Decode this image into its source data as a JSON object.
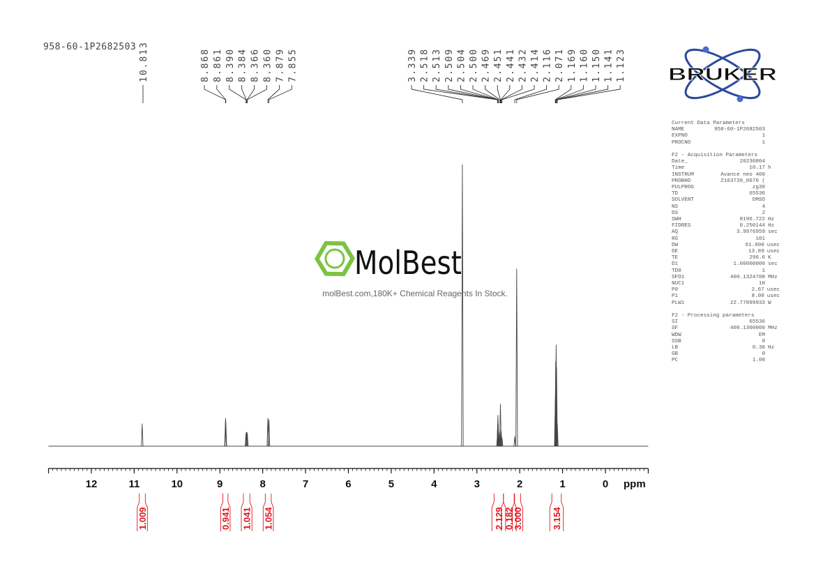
{
  "sample_name": "958-60-1P2682503",
  "logo": {
    "text": "BRUKER",
    "color": "#1f3f8f",
    "accent": "#4060c0"
  },
  "watermark": {
    "brand": "MolBest",
    "tagline": "molBest.com,180K+ Chemical Reagents In Stock.",
    "color": "#7dc242"
  },
  "parameters": [
    {
      "title": "Current Data Parameters",
      "rows": [
        [
          "NAME",
          "958-60-1P2682503",
          ""
        ],
        [
          "EXPNO",
          "1",
          ""
        ],
        [
          "PROCNO",
          "1",
          ""
        ]
      ]
    },
    {
      "title": "F2 - Acquisition Parameters",
      "rows": [
        [
          "Date_",
          "20230804",
          ""
        ],
        [
          "Time",
          "10.17",
          "h"
        ],
        [
          "INSTRUM",
          "Avance neo 400",
          ""
        ],
        [
          "PROBHD",
          "Z163739_0670 (",
          ""
        ],
        [
          "PULPROG",
          "zg30",
          ""
        ],
        [
          "TD",
          "65536",
          ""
        ],
        [
          "SOLVENT",
          "DMSO",
          ""
        ],
        [
          "NS",
          "4",
          ""
        ],
        [
          "DS",
          "2",
          ""
        ],
        [
          "SWH",
          "8196.722",
          "Hz"
        ],
        [
          "FIDRES",
          "0.250144",
          "Hz"
        ],
        [
          "AQ",
          "3.9976959",
          "sec"
        ],
        [
          "RG",
          "101",
          ""
        ],
        [
          "DW",
          "61.000",
          "usec"
        ],
        [
          "DE",
          "13.89",
          "usec"
        ],
        [
          "TE",
          "296.6",
          "K"
        ],
        [
          "D1",
          "1.00000000",
          "sec"
        ],
        [
          "TD0",
          "1",
          ""
        ],
        [
          "SFO1",
          "400.1324708",
          "MHz"
        ],
        [
          "NUC1",
          "1H",
          ""
        ],
        [
          "P0",
          "2.67",
          "usec"
        ],
        [
          "P1",
          "8.00",
          "usec"
        ],
        [
          "PLW1",
          "22.77899933",
          "W"
        ]
      ]
    },
    {
      "title": "F2 - Processing parameters",
      "rows": [
        [
          "SI",
          "65536",
          ""
        ],
        [
          "SF",
          "400.1300000",
          "MHz"
        ],
        [
          "WDW",
          "EM",
          ""
        ],
        [
          "SSB",
          "0",
          ""
        ],
        [
          "LB",
          "0.30",
          "Hz"
        ],
        [
          "GB",
          "0",
          ""
        ],
        [
          "PC",
          "1.00",
          ""
        ]
      ]
    }
  ],
  "chart_data": {
    "type": "line",
    "xlabel": "ppm",
    "xlim": [
      13.0,
      -1.0
    ],
    "x_reversed": true,
    "xticks": [
      "12",
      "11",
      "10",
      "9",
      "8",
      "7",
      "6",
      "5",
      "4",
      "3",
      "2",
      "1",
      "0"
    ],
    "colors": {
      "spectrum": "#444444",
      "integral": "#e0141e",
      "peak_labels": "#444444"
    },
    "peak_label_groups": [
      [
        "10.813"
      ],
      [
        "8.868",
        "8.861",
        "8.390",
        "8.384",
        "8.366",
        "8.360",
        "7.879",
        "7.855"
      ],
      [
        "3.339",
        "2.518",
        "2.513",
        "2.509",
        "2.504",
        "2.500",
        "2.469",
        "2.451",
        "2.441",
        "2.432",
        "2.414",
        "2.116",
        "2.071",
        "1.169",
        "1.160",
        "1.150",
        "1.141",
        "1.123"
      ]
    ],
    "peaks": [
      {
        "ppm": 10.813,
        "intensity": 8
      },
      {
        "ppm": 8.868,
        "intensity": 10
      },
      {
        "ppm": 8.861,
        "intensity": 9
      },
      {
        "ppm": 8.39,
        "intensity": 4.5
      },
      {
        "ppm": 8.384,
        "intensity": 5
      },
      {
        "ppm": 8.366,
        "intensity": 5
      },
      {
        "ppm": 8.36,
        "intensity": 4.5
      },
      {
        "ppm": 7.879,
        "intensity": 10
      },
      {
        "ppm": 7.855,
        "intensity": 9.5
      },
      {
        "ppm": 3.339,
        "intensity": 100
      },
      {
        "ppm": 2.518,
        "intensity": 4
      },
      {
        "ppm": 2.513,
        "intensity": 8
      },
      {
        "ppm": 2.509,
        "intensity": 11
      },
      {
        "ppm": 2.504,
        "intensity": 8
      },
      {
        "ppm": 2.5,
        "intensity": 4
      },
      {
        "ppm": 2.469,
        "intensity": 5
      },
      {
        "ppm": 2.451,
        "intensity": 15
      },
      {
        "ppm": 2.441,
        "intensity": 6
      },
      {
        "ppm": 2.432,
        "intensity": 5
      },
      {
        "ppm": 2.414,
        "intensity": 3
      },
      {
        "ppm": 2.116,
        "intensity": 3.5
      },
      {
        "ppm": 2.071,
        "intensity": 63
      },
      {
        "ppm": 1.169,
        "intensity": 17
      },
      {
        "ppm": 1.16,
        "intensity": 30
      },
      {
        "ppm": 1.15,
        "intensity": 36
      },
      {
        "ppm": 1.141,
        "intensity": 28
      },
      {
        "ppm": 1.123,
        "intensity": 8
      }
    ],
    "integrals": [
      {
        "from": 10.88,
        "to": 10.74,
        "value": "1.009"
      },
      {
        "from": 8.93,
        "to": 8.81,
        "value": "0.941"
      },
      {
        "from": 8.45,
        "to": 8.3,
        "value": "1.041"
      },
      {
        "from": 7.94,
        "to": 7.8,
        "value": "1.054"
      },
      {
        "from": 2.6,
        "to": 2.38,
        "value": "2.129"
      },
      {
        "from": 2.38,
        "to": 2.13,
        "value": "0.182"
      },
      {
        "from": 2.12,
        "to": 1.98,
        "value": "3.000"
      },
      {
        "from": 1.25,
        "to": 1.03,
        "value": "3.154"
      }
    ]
  }
}
